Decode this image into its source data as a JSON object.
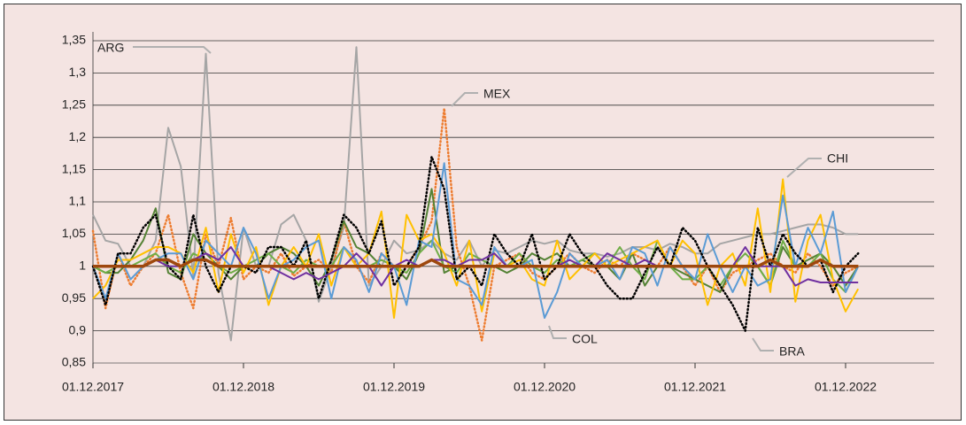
{
  "chart_data": {
    "type": "line",
    "categories": [
      "01.12.2017",
      null,
      null,
      null,
      null,
      null,
      null,
      null,
      null,
      null,
      null,
      null,
      "01.12.2018",
      null,
      null,
      null,
      null,
      null,
      null,
      null,
      null,
      null,
      null,
      null,
      "01.12.2019",
      null,
      null,
      null,
      null,
      null,
      null,
      null,
      null,
      null,
      null,
      null,
      "01.12.2020",
      null,
      null,
      null,
      null,
      null,
      null,
      null,
      null,
      null,
      null,
      null,
      "01.12.2021",
      null,
      null,
      null,
      null,
      null,
      null,
      null,
      null,
      null,
      null,
      null,
      "01.12.2022",
      null
    ],
    "ylim": [
      0.85,
      1.35
    ],
    "yticks": [
      {
        "value": 0.85,
        "label": "0,85"
      },
      {
        "value": 0.9,
        "label": "0,9"
      },
      {
        "value": 0.95,
        "label": "0,95"
      },
      1,
      {
        "value": 1.05,
        "label": "1,05"
      },
      {
        "value": 1.1,
        "label": "1,1"
      },
      {
        "value": 1.15,
        "label": "1,15"
      },
      {
        "value": 1.2,
        "label": "1,2"
      },
      {
        "value": 1.25,
        "label": "1,25"
      },
      {
        "value": 1.3,
        "label": "1,3"
      },
      {
        "value": 1.35,
        "label": "1,35"
      }
    ],
    "grid": true,
    "series": [
      {
        "name": "ARG",
        "color": "#a5a5a5",
        "values": [
          1.08,
          1.04,
          1.035,
          1.0,
          1.0,
          1.04,
          1.215,
          1.155,
          0.985,
          1.33,
          0.99,
          0.885,
          1.06,
          1.0,
          1.0,
          1.065,
          1.08,
          1.04,
          0.945,
          1.0,
          1.06,
          1.34,
          0.97,
          1.0,
          1.04,
          1.02,
          1.025,
          1.04,
          1.02,
          1.01,
          1.04,
          1.0,
          1.025,
          1.02,
          1.03,
          1.04,
          1.035,
          1.04,
          1.025,
          1.02,
          1.02,
          1.015,
          1.02,
          1.03,
          1.03,
          1.025,
          1.035,
          1.03,
          1.02,
          1.02,
          1.035,
          1.04,
          1.045,
          1.05,
          1.05,
          1.055,
          1.06,
          1.065,
          1.065,
          1.06,
          1.05,
          1.05
        ]
      },
      {
        "name": "MEX",
        "color": "#ed7d31",
        "style": "dotted",
        "values": [
          1.055,
          0.935,
          1.02,
          0.97,
          1.0,
          1.02,
          1.08,
          0.99,
          0.935,
          1.05,
          1.0,
          1.075,
          0.98,
          1.0,
          0.99,
          1.02,
          0.985,
          1.0,
          1.01,
          0.99,
          1.07,
          1.0,
          0.975,
          1.02,
          1.0,
          1.0,
          1.03,
          1.07,
          1.245,
          1.03,
          0.97,
          0.885,
          1.0,
          1.01,
          1.02,
          0.99,
          0.98,
          1.0,
          1.02,
          1.0,
          0.99,
          1.01,
          1.0,
          1.02,
          1.01,
          1.0,
          1.03,
          1.0,
          0.97,
          1.0,
          0.96,
          0.99,
          1.0,
          1.01,
          1.02,
          1.0,
          0.99,
          1.02,
          1.0,
          0.97,
          0.99,
          1.0
        ]
      },
      {
        "color": "#548235",
        "values": [
          1.0,
          0.99,
          0.99,
          1.01,
          1.04,
          1.09,
          0.99,
          0.98,
          1.05,
          1.02,
          1.0,
          0.98,
          1.0,
          1.0,
          1.02,
          1.03,
          1.02,
          1.0,
          0.97,
          1.01,
          1.07,
          1.03,
          1.02,
          1.0,
          1.0,
          0.98,
          1.02,
          1.12,
          0.99,
          1.0,
          1.0,
          1.0,
          1.0,
          0.99,
          1.0,
          1.02,
          1.01,
          1.02,
          1.0,
          1.01,
          1.0,
          1.0,
          0.98,
          1.02,
          0.97,
          1.0,
          1.0,
          0.99,
          0.98,
          0.97,
          0.96,
          1.0,
          1.0,
          1.0,
          0.97,
          1.03,
          1.0,
          1.01,
          1.02,
          1.0,
          0.97,
          1.0
        ]
      },
      {
        "color": "#70ad47",
        "values": [
          1.0,
          0.99,
          1.0,
          1.0,
          1.01,
          1.02,
          1.0,
          0.99,
          1.02,
          1.01,
          1.0,
          0.99,
          1.0,
          1.01,
          1.02,
          1.0,
          0.99,
          1.01,
          1.0,
          1.0,
          1.03,
          1.0,
          1.0,
          1.01,
          1.0,
          0.99,
          1.02,
          1.04,
          1.0,
          0.99,
          1.02,
          1.01,
          1.0,
          1.0,
          1.02,
          1.0,
          0.99,
          1.01,
          1.0,
          1.01,
          1.02,
          1.0,
          1.03,
          1.0,
          0.98,
          1.04,
          1.0,
          0.98,
          0.98,
          1.0,
          0.97,
          1.0,
          1.02,
          1.0,
          0.97,
          1.04,
          1.0,
          1.0,
          1.02,
          0.98,
          0.96,
          1.0
        ]
      },
      {
        "name": "CHI",
        "color": "#ffc000",
        "values": [
          0.95,
          0.97,
          1.01,
          1.01,
          1.02,
          1.03,
          1.03,
          1.02,
          0.99,
          1.06,
          0.96,
          1.05,
          0.99,
          1.03,
          0.94,
          1.0,
          1.03,
          1.0,
          1.05,
          0.97,
          1.03,
          1.0,
          1.02,
          1.085,
          0.92,
          1.08,
          1.04,
          1.05,
          1.02,
          0.97,
          1.04,
          0.93,
          1.02,
          1.0,
          1.01,
          0.98,
          0.97,
          1.04,
          0.98,
          1.0,
          1.02,
          1.0,
          1.01,
          1.02,
          1.03,
          1.04,
          1.0,
          1.04,
          1.02,
          0.94,
          1.0,
          1.02,
          0.97,
          1.09,
          0.96,
          1.135,
          0.945,
          1.04,
          1.08,
          0.98,
          0.93,
          0.965
        ]
      },
      {
        "name": "COL",
        "color": "#5b9bd5",
        "values": [
          1.0,
          0.95,
          1.02,
          0.98,
          1.0,
          1.01,
          1.02,
          1.02,
          0.98,
          1.04,
          1.02,
          1.0,
          1.06,
          1.02,
          0.95,
          1.0,
          1.01,
          1.03,
          1.04,
          0.95,
          1.03,
          1.01,
          0.96,
          1.02,
          1.0,
          0.94,
          1.04,
          1.03,
          1.16,
          0.98,
          0.97,
          0.94,
          1.03,
          1.0,
          1.0,
          1.01,
          0.92,
          0.96,
          1.02,
          1.0,
          1.0,
          1.01,
          0.98,
          1.03,
          1.02,
          0.97,
          1.03,
          1.0,
          0.98,
          1.05,
          1.0,
          0.96,
          1.0,
          0.97,
          0.98,
          1.11,
          1.0,
          1.06,
          1.02,
          1.085,
          0.96,
          1.0
        ]
      },
      {
        "name": "BRA",
        "color": "#000000",
        "style": "dotted",
        "values": [
          1.0,
          0.94,
          1.02,
          1.02,
          1.06,
          1.08,
          1.0,
          0.98,
          1.08,
          1.0,
          0.96,
          1.0,
          1.0,
          0.99,
          1.03,
          1.03,
          1.0,
          1.04,
          0.95,
          1.01,
          1.08,
          1.06,
          1.02,
          1.07,
          0.97,
          1.0,
          1.03,
          1.17,
          1.12,
          0.98,
          1.0,
          0.97,
          1.05,
          1.02,
          1.0,
          1.05,
          0.98,
          1.0,
          1.05,
          1.02,
          1.0,
          0.97,
          0.95,
          0.95,
          0.99,
          1.03,
          1.0,
          1.06,
          1.04,
          1.0,
          0.97,
          0.94,
          0.9,
          1.06,
          1.0,
          1.05,
          1.02,
          1.0,
          1.01,
          0.96,
          1.0,
          1.02
        ]
      },
      {
        "color": "#7030a0",
        "values": [
          1.0,
          1.0,
          1.0,
          1.0,
          1.0,
          1.01,
          1.0,
          1.0,
          1.01,
          1.02,
          1.01,
          1.03,
          1.0,
          1.0,
          1.0,
          0.99,
          0.98,
          0.99,
          0.98,
          0.99,
          1.0,
          1.02,
          1.0,
          0.97,
          1.0,
          1.01,
          1.0,
          1.01,
          1.01,
          1.0,
          1.01,
          1.01,
          1.02,
          1.0,
          1.0,
          1.0,
          1.0,
          1.0,
          1.01,
          1.0,
          1.0,
          1.02,
          1.01,
          1.0,
          1.01,
          1.0,
          1.0,
          1.0,
          1.0,
          1.0,
          1.0,
          1.0,
          1.03,
          1.0,
          1.0,
          1.0,
          0.97,
          0.98,
          0.975,
          0.975,
          0.975,
          0.975
        ]
      },
      {
        "color": "#9e480e",
        "line_width": 3.5,
        "values": [
          1.0,
          1.0,
          1.0,
          1.0,
          1.0,
          1.01,
          1.01,
          1.0,
          1.01,
          1.01,
          1.0,
          1.0,
          1.0,
          1.0,
          1.0,
          1.0,
          1.0,
          1.0,
          1.0,
          1.0,
          1.0,
          1.0,
          1.0,
          1.0,
          1.0,
          1.0,
          1.0,
          1.01,
          1.0,
          1.0,
          1.0,
          1.0,
          1.0,
          1.0,
          1.0,
          1.0,
          1.0,
          1.0,
          1.0,
          1.0,
          1.0,
          1.0,
          1.0,
          1.0,
          1.0,
          1.0,
          1.0,
          1.0,
          1.0,
          1.0,
          1.0,
          1.0,
          1.0,
          1.0,
          1.01,
          1.0,
          1.0,
          1.0,
          1.01,
          1.0,
          1.0,
          1.0
        ]
      }
    ]
  }
}
